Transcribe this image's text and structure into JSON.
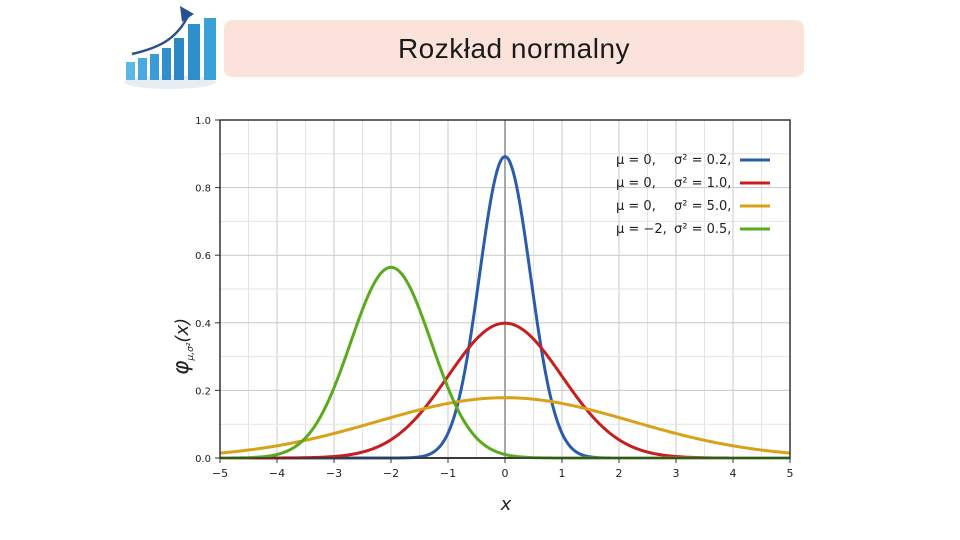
{
  "slide": {
    "title": "Rozkład normalny"
  },
  "logo": {
    "icon": "rising-bar-chart-icon",
    "colors": [
      "#3aa0d8",
      "#1f6fb0",
      "#2a4f8f"
    ]
  },
  "chart_data": {
    "type": "line",
    "title": "",
    "xlabel": "x",
    "ylabel": "φμ,σ²(x)",
    "ylabel_main": "φ",
    "ylabel_sub": "μ,σ²",
    "ylabel_arg": "(x)",
    "xlim": [
      -5,
      5
    ],
    "ylim": [
      0,
      1.0
    ],
    "xticks": [
      "−5",
      "−4",
      "−3",
      "−2",
      "−1",
      "0",
      "1",
      "2",
      "3",
      "4",
      "5"
    ],
    "yticks": [
      "0.0",
      "0.2",
      "0.4",
      "0.6",
      "0.8",
      "1.0"
    ],
    "grid": true,
    "legend_position": "top-right",
    "series": [
      {
        "name": "μ = 0,  σ² = 0.2,",
        "mu_label": "μ = 0,",
        "var_label": "σ² = 0.2,",
        "mu": 0,
        "variance": 0.2,
        "color": "#2a5caa"
      },
      {
        "name": "μ = 0,  σ² = 1.0,",
        "mu_label": "μ = 0,",
        "var_label": "σ² = 1.0,",
        "mu": 0,
        "variance": 1.0,
        "color": "#c81e1e"
      },
      {
        "name": "μ = 0,  σ² = 5.0,",
        "mu_label": "μ = 0,",
        "var_label": "σ² = 5.0,",
        "mu": 0,
        "variance": 5.0,
        "color": "#d9a018"
      },
      {
        "name": "μ = −2,  σ² = 0.5,",
        "mu_label": "μ = −2,",
        "var_label": "σ² = 0.5,",
        "mu": -2,
        "variance": 0.5,
        "color": "#5aaa1e"
      }
    ]
  }
}
